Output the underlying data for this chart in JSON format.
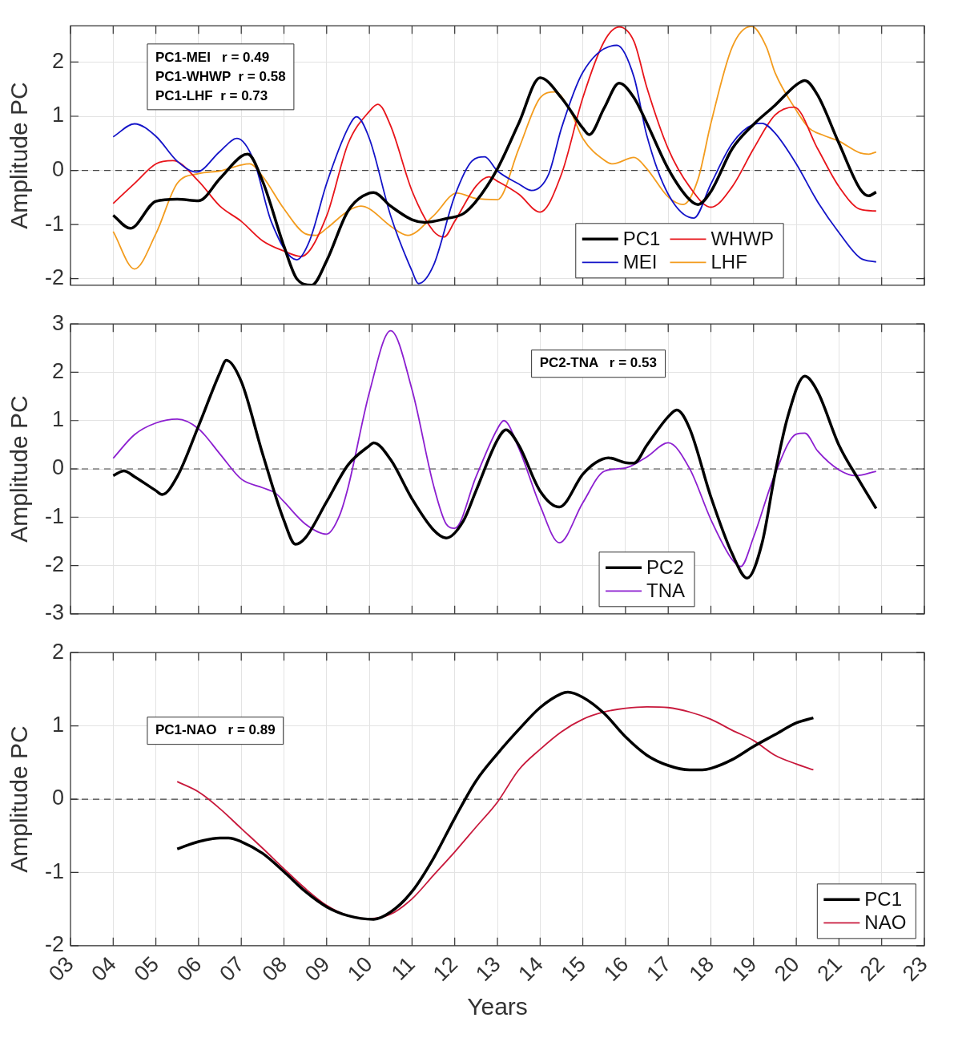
{
  "chart_data": [
    {
      "type": "line",
      "ylabel": "Amplitude PC",
      "xlim": [
        3,
        23
      ],
      "xticks": [
        3,
        4,
        5,
        6,
        7,
        8,
        9,
        10,
        11,
        12,
        13,
        14,
        15,
        16,
        17,
        18,
        19,
        20,
        21,
        22,
        23
      ],
      "ylim": [
        -2.12,
        2.67
      ],
      "yticks": [
        -2,
        -1,
        0,
        1,
        2
      ],
      "tick_labels": "y",
      "grid": true,
      "legend": "bottom right",
      "annotations": [
        "PC1-MEI   r = 0.49",
        "PC1-WHWP  r = 0.58",
        "PC1-LHF  r = 0.73"
      ],
      "ref_lines": [
        {
          "axis": "y",
          "value": 0,
          "color": "#444444",
          "line_style": "dashed"
        }
      ],
      "series": [
        {
          "name": "PC1",
          "color": "#000000",
          "x": [
            4,
            4.4,
            5,
            5.5,
            6,
            6.5,
            7,
            7.15,
            7.5,
            8,
            8.3,
            8.65,
            9,
            9.5,
            10,
            10.1,
            10.5,
            11,
            11.3,
            11.8,
            12.2,
            12.5,
            13,
            13.5,
            14,
            14.5,
            15,
            15.15,
            15.5,
            15.85,
            16.2,
            16.5,
            17,
            17.5,
            17.7,
            18,
            18.5,
            19,
            19.5,
            20,
            20.2,
            20.5,
            21,
            21.5,
            21.7,
            21.87
          ],
          "values": [
            -0.83,
            -1.07,
            -0.57,
            -0.53,
            -0.56,
            -0.15,
            0.26,
            0.3,
            -0.2,
            -1.4,
            -2.0,
            -2.12,
            -1.67,
            -0.75,
            -0.42,
            -0.41,
            -0.66,
            -0.91,
            -0.96,
            -0.89,
            -0.8,
            -0.57,
            0.03,
            0.87,
            1.71,
            1.34,
            0.78,
            0.66,
            1.15,
            1.61,
            1.34,
            0.87,
            0.03,
            -0.54,
            -0.63,
            -0.39,
            0.4,
            0.85,
            1.2,
            1.58,
            1.66,
            1.39,
            0.5,
            -0.35,
            -0.47,
            -0.4
          ]
        },
        {
          "name": "MEI",
          "color": "#1414c8",
          "x": [
            4,
            4.5,
            5,
            5.5,
            5.95,
            6.5,
            6.9,
            7.3,
            7.7,
            8.3,
            8.6,
            9,
            9.5,
            9.7,
            10,
            10.5,
            11,
            11.15,
            11.5,
            12,
            12.4,
            12.7,
            13,
            13.5,
            13.8,
            14.2,
            14.5,
            15,
            15.8,
            16.2,
            16.5,
            17,
            17.6,
            18,
            18.5,
            19,
            19.2,
            19.5,
            20,
            20.5,
            21,
            21.5,
            21.87
          ],
          "values": [
            0.62,
            0.86,
            0.63,
            0.17,
            -0.03,
            0.35,
            0.59,
            0.17,
            -0.94,
            -1.65,
            -1.3,
            -0.24,
            0.78,
            0.99,
            0.59,
            -0.84,
            -1.86,
            -2.09,
            -1.76,
            -0.47,
            0.17,
            0.25,
            -0.01,
            -0.25,
            -0.37,
            -0.07,
            0.78,
            1.81,
            2.31,
            1.72,
            0.64,
            -0.44,
            -0.88,
            -0.25,
            0.5,
            0.85,
            0.87,
            0.69,
            0.12,
            -0.58,
            -1.15,
            -1.62,
            -1.69
          ]
        },
        {
          "name": "WHWP",
          "color": "#e8151b",
          "x": [
            4,
            4.5,
            5,
            5.4,
            6,
            6.5,
            7,
            7.5,
            8,
            8.4,
            9,
            9.5,
            10,
            10.2,
            10.5,
            11,
            11.5,
            11.75,
            12,
            12.5,
            12.8,
            13,
            13.5,
            14,
            14.5,
            15,
            15.5,
            15.85,
            16.2,
            16.5,
            17,
            17.5,
            18,
            18.5,
            19,
            19.5,
            19.95,
            20.5,
            21,
            21.5,
            21.87
          ],
          "values": [
            -0.61,
            -0.24,
            0.12,
            0.18,
            -0.2,
            -0.66,
            -0.94,
            -1.3,
            -1.49,
            -1.59,
            -0.84,
            0.49,
            1.09,
            1.22,
            0.82,
            -0.38,
            -1.12,
            -1.23,
            -0.94,
            -0.29,
            -0.12,
            -0.2,
            -0.44,
            -0.77,
            -0.07,
            1.34,
            2.38,
            2.65,
            2.38,
            1.53,
            0.4,
            -0.3,
            -0.68,
            -0.3,
            0.4,
            1.02,
            1.17,
            0.4,
            -0.3,
            -0.72,
            -0.75
          ]
        },
        {
          "name": "LHF",
          "color": "#f39c1e",
          "x": [
            4,
            4.5,
            5,
            5.5,
            6,
            6.5,
            7,
            7.2,
            7.5,
            8,
            8.5,
            8.75,
            9,
            9.5,
            9.8,
            10,
            10.5,
            10.9,
            11.5,
            12.05,
            12.5,
            13,
            13.5,
            14,
            14.35,
            14.7,
            15,
            15.5,
            15.7,
            16.2,
            16.5,
            17,
            17.35,
            17.7,
            18,
            18.5,
            18.95,
            19.3,
            19.5,
            20,
            20.3,
            20.6,
            21,
            21.5,
            21.7,
            21.87
          ],
          "values": [
            -1.13,
            -1.82,
            -1.17,
            -0.24,
            -0.06,
            -0.01,
            0.1,
            0.12,
            -0.11,
            -0.71,
            -1.17,
            -1.2,
            -1.07,
            -0.75,
            -0.66,
            -0.71,
            -1.03,
            -1.2,
            -0.84,
            -0.42,
            -0.52,
            -0.54,
            0.4,
            1.34,
            1.45,
            1.11,
            0.59,
            0.19,
            0.12,
            0.24,
            0.03,
            -0.49,
            -0.63,
            -0.16,
            0.87,
            2.28,
            2.66,
            2.28,
            1.81,
            1.11,
            0.78,
            0.66,
            0.54,
            0.32,
            0.3,
            0.34
          ]
        }
      ]
    },
    {
      "type": "line",
      "ylabel": "Amplitude PC",
      "xlim": [
        3,
        23
      ],
      "xticks": [
        3,
        4,
        5,
        6,
        7,
        8,
        9,
        10,
        11,
        12,
        13,
        14,
        15,
        16,
        17,
        18,
        19,
        20,
        21,
        22,
        23
      ],
      "ylim": [
        -3,
        3
      ],
      "yticks": [
        -3,
        -2,
        -1,
        0,
        1,
        2,
        3
      ],
      "tick_labels": "y",
      "grid": true,
      "legend": "bottom",
      "annotations": [
        "PC2-TNA   r = 0.53"
      ],
      "ref_lines": [
        {
          "axis": "y",
          "value": 0,
          "color": "#444444",
          "line_style": "dashed"
        }
      ],
      "series": [
        {
          "name": "PC2",
          "color": "#000000",
          "x": [
            4,
            4.25,
            4.5,
            5,
            5.15,
            5.5,
            6,
            6.5,
            6.65,
            7,
            7.5,
            8,
            8.27,
            8.5,
            9,
            9.5,
            10,
            10.1,
            10.5,
            11,
            11.5,
            11.8,
            12.2,
            12.5,
            13,
            13.2,
            13.5,
            14,
            14.45,
            15,
            15.3,
            15.6,
            16,
            16.2,
            16.5,
            17,
            17.2,
            17.5,
            18,
            18.5,
            18.85,
            19.2,
            19.5,
            19.8,
            20.2,
            20.5,
            21,
            21.5,
            21.87
          ],
          "values": [
            -0.14,
            -0.04,
            -0.16,
            -0.45,
            -0.53,
            -0.16,
            0.89,
            1.99,
            2.25,
            1.81,
            0.31,
            -1.07,
            -1.56,
            -1.43,
            -0.68,
            0.08,
            0.48,
            0.54,
            0.19,
            -0.62,
            -1.26,
            -1.43,
            -1.08,
            -0.45,
            0.6,
            0.81,
            0.49,
            -0.46,
            -0.79,
            -0.11,
            0.13,
            0.23,
            0.13,
            0.12,
            0.49,
            1.08,
            1.22,
            0.84,
            -0.58,
            -1.76,
            -2.26,
            -1.53,
            -0.11,
            1.08,
            1.92,
            1.6,
            0.49,
            -0.28,
            -0.82
          ]
        },
        {
          "name": "TNA",
          "color": "#8c1fd0",
          "x": [
            4,
            4.5,
            5,
            5.5,
            6,
            6.5,
            7,
            7.5,
            7.8,
            8,
            8.5,
            9,
            9.3,
            9.5,
            10,
            10.5,
            11,
            11.5,
            11.8,
            12,
            12.5,
            13,
            13.15,
            13.5,
            14,
            14.45,
            15,
            15.5,
            16,
            16.5,
            17,
            17.5,
            18,
            18.5,
            18.7,
            19,
            19.5,
            20,
            20.2,
            20.5,
            21,
            21.4,
            21.87
          ],
          "values": [
            0.22,
            0.71,
            0.95,
            1.03,
            0.83,
            0.31,
            -0.21,
            -0.39,
            -0.5,
            -0.68,
            -1.14,
            -1.35,
            -0.97,
            -0.39,
            1.58,
            2.86,
            1.64,
            -0.33,
            -1.14,
            -1.23,
            -0.16,
            0.83,
            1.0,
            0.43,
            -0.76,
            -1.53,
            -0.7,
            -0.05,
            0.02,
            0.25,
            0.54,
            0.01,
            -1.05,
            -1.88,
            -2.02,
            -1.41,
            -0.11,
            0.72,
            0.74,
            0.37,
            -0.02,
            -0.14,
            -0.05
          ]
        }
      ]
    },
    {
      "type": "line",
      "ylabel": "Amplitude PC",
      "xlabel": "Years",
      "xlim": [
        3,
        23
      ],
      "xticks": [
        {
          "value": 3,
          "label": "03"
        },
        {
          "value": 4,
          "label": "04"
        },
        {
          "value": 5,
          "label": "05"
        },
        {
          "value": 6,
          "label": "06"
        },
        {
          "value": 7,
          "label": "07"
        },
        {
          "value": 8,
          "label": "08"
        },
        {
          "value": 9,
          "label": "09"
        },
        {
          "value": 10,
          "label": "10"
        },
        {
          "value": 11,
          "label": "11"
        },
        {
          "value": 12,
          "label": "12"
        },
        {
          "value": 13,
          "label": "13"
        },
        {
          "value": 14,
          "label": "14"
        },
        {
          "value": 15,
          "label": "15"
        },
        {
          "value": 16,
          "label": "16"
        },
        {
          "value": 17,
          "label": "17"
        },
        {
          "value": 18,
          "label": "18"
        },
        {
          "value": 19,
          "label": "19"
        },
        {
          "value": 20,
          "label": "20"
        },
        {
          "value": 21,
          "label": "21"
        },
        {
          "value": 22,
          "label": "22"
        },
        {
          "value": 23,
          "label": "23"
        }
      ],
      "ylim": [
        -2,
        2
      ],
      "yticks": [
        -2,
        -1,
        0,
        1,
        2
      ],
      "grid": true,
      "legend": "bottom right",
      "annotations": [
        "PC1-NAO   r = 0.89"
      ],
      "ref_lines": [
        {
          "axis": "y",
          "value": 0,
          "color": "#444444",
          "line_style": "dashed"
        }
      ],
      "series": [
        {
          "name": "PC1",
          "color": "#000000",
          "x": [
            5.5,
            6,
            6.5,
            6.7,
            7,
            7.5,
            8,
            8.5,
            9,
            9.5,
            10.1,
            10.5,
            11,
            11.5,
            12,
            12.5,
            13,
            13.5,
            14,
            14.5,
            14.65,
            15,
            15.5,
            16,
            16.5,
            17,
            17.5,
            17.8,
            18,
            18.5,
            19,
            19.5,
            20,
            20.4
          ],
          "values": [
            -0.68,
            -0.58,
            -0.53,
            -0.53,
            -0.58,
            -0.74,
            -0.99,
            -1.26,
            -1.47,
            -1.59,
            -1.64,
            -1.54,
            -1.26,
            -0.81,
            -0.26,
            0.25,
            0.62,
            0.95,
            1.25,
            1.44,
            1.46,
            1.39,
            1.17,
            0.85,
            0.6,
            0.46,
            0.4,
            0.4,
            0.42,
            0.54,
            0.72,
            0.88,
            1.04,
            1.11
          ]
        },
        {
          "name": "NAO",
          "color": "#c8193c",
          "x": [
            5.5,
            6,
            6.5,
            7,
            7.5,
            8,
            8.5,
            9,
            9.5,
            10,
            10.5,
            11,
            11.5,
            12,
            12.5,
            13,
            13.5,
            14,
            14.5,
            15,
            15.5,
            16,
            16.5,
            17,
            17.5,
            18,
            18.5,
            19,
            19.5,
            20,
            20.4
          ],
          "values": [
            0.24,
            0.1,
            -0.13,
            -0.4,
            -0.67,
            -0.95,
            -1.22,
            -1.45,
            -1.59,
            -1.63,
            -1.57,
            -1.36,
            -1.04,
            -0.72,
            -0.38,
            -0.04,
            0.4,
            0.68,
            0.92,
            1.09,
            1.19,
            1.24,
            1.26,
            1.25,
            1.19,
            1.09,
            0.94,
            0.8,
            0.6,
            0.48,
            0.4
          ]
        }
      ]
    }
  ]
}
